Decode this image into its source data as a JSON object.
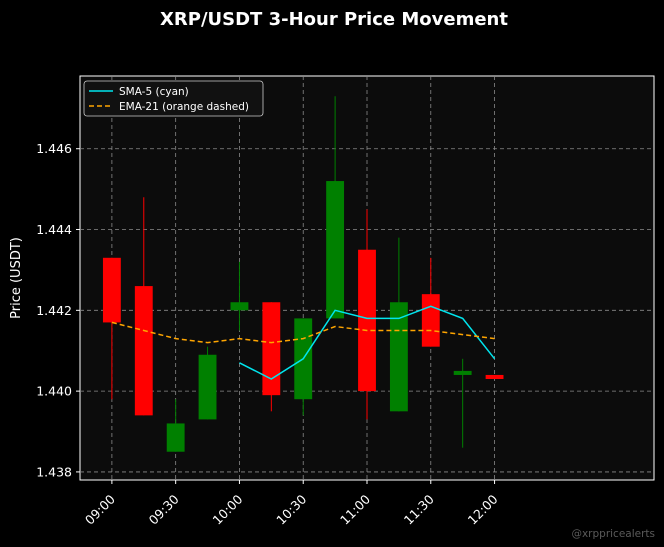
{
  "chart_data": {
    "type": "candlestick",
    "title": "XRP/USDT 3-Hour Price Movement",
    "xlabel": "",
    "ylabel": "Price (USDT)",
    "ylim": [
      1.4378,
      1.4478
    ],
    "xlim": [
      "08:45",
      "13:15"
    ],
    "grid": true,
    "legend_position": "top-left",
    "watermark": "@xrppricealerts",
    "x_ticks": [
      "09:00",
      "09:30",
      "10:00",
      "10:30",
      "11:00",
      "11:30",
      "12:00"
    ],
    "y_ticks": [
      "1.438",
      "1.440",
      "1.442",
      "1.444",
      "1.446"
    ],
    "colors": {
      "background": "#000000",
      "plot_background": "#0c0c0c",
      "up": "#008000",
      "down": "#ff0000",
      "sma": "#00e5ee",
      "ema": "#ffa500",
      "grid": "#8a8a8a"
    },
    "candles": [
      {
        "time": "09:00",
        "open": 1.4433,
        "high": 1.4433,
        "low": 1.4398,
        "close": 1.4417
      },
      {
        "time": "09:15",
        "open": 1.4426,
        "high": 1.4448,
        "low": 1.4394,
        "close": 1.4394
      },
      {
        "time": "09:30",
        "open": 1.4385,
        "high": 1.4398,
        "low": 1.4385,
        "close": 1.4392
      },
      {
        "time": "09:45",
        "open": 1.4393,
        "high": 1.4411,
        "low": 1.4393,
        "close": 1.4409
      },
      {
        "time": "10:00",
        "open": 1.442,
        "high": 1.4432,
        "low": 1.4415,
        "close": 1.4422
      },
      {
        "time": "10:15",
        "open": 1.4422,
        "high": 1.4422,
        "low": 1.4395,
        "close": 1.4399
      },
      {
        "time": "10:30",
        "open": 1.4398,
        "high": 1.4418,
        "low": 1.4394,
        "close": 1.4418
      },
      {
        "time": "10:45",
        "open": 1.4418,
        "high": 1.4473,
        "low": 1.4418,
        "close": 1.4452
      },
      {
        "time": "11:00",
        "open": 1.4435,
        "high": 1.4445,
        "low": 1.4393,
        "close": 1.44
      },
      {
        "time": "11:15",
        "open": 1.4395,
        "high": 1.4438,
        "low": 1.4395,
        "close": 1.4422
      },
      {
        "time": "11:30",
        "open": 1.4424,
        "high": 1.4433,
        "low": 1.4411,
        "close": 1.4411
      },
      {
        "time": "11:45",
        "open": 1.4404,
        "high": 1.4408,
        "low": 1.4386,
        "close": 1.4405
      },
      {
        "time": "12:00",
        "open": 1.4404,
        "high": 1.4404,
        "low": 1.4403,
        "close": 1.4403
      }
    ],
    "series": [
      {
        "name": "SMA-5 (cyan)",
        "style": "solid",
        "x": [
          "10:00",
          "10:15",
          "10:30",
          "10:45",
          "11:00",
          "11:15",
          "11:30",
          "11:45",
          "12:00"
        ],
        "values": [
          1.4407,
          1.4403,
          1.4408,
          1.442,
          1.4418,
          1.4418,
          1.4421,
          1.4418,
          1.4408
        ]
      },
      {
        "name": "EMA-21 (orange dashed)",
        "style": "dashed",
        "x": [
          "09:00",
          "09:15",
          "09:30",
          "09:45",
          "10:00",
          "10:15",
          "10:30",
          "10:45",
          "11:00",
          "11:15",
          "11:30",
          "11:45",
          "12:00"
        ],
        "values": [
          1.4417,
          1.4415,
          1.4413,
          1.4412,
          1.4413,
          1.4412,
          1.4413,
          1.4416,
          1.4415,
          1.4415,
          1.4415,
          1.4414,
          1.4413
        ]
      }
    ]
  }
}
